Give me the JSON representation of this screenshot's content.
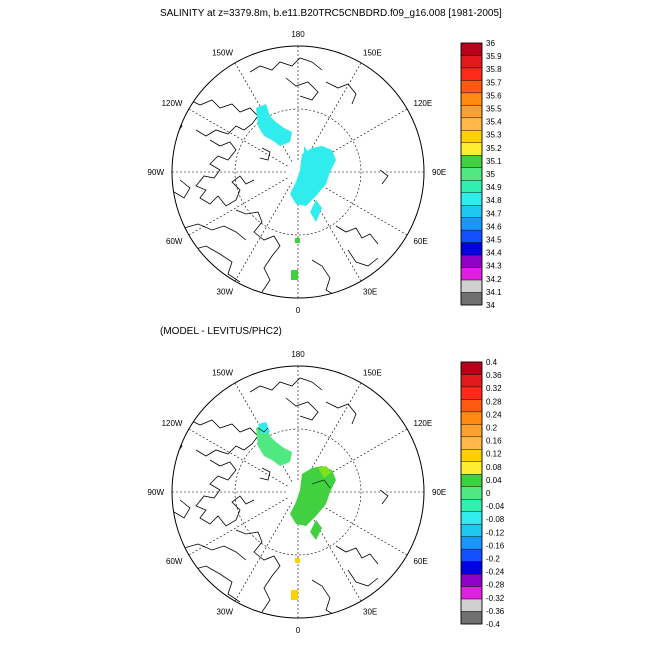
{
  "chart_data": [
    {
      "type": "polar-map",
      "title": "SALINITY at z=3379.8m, b.e11.B20TRC5CNBDRD.f09_g16.008 [1981-2005]",
      "longitude_labels": [
        "180",
        "150E",
        "120E",
        "90E",
        "60E",
        "30E",
        "0",
        "30W",
        "60W",
        "90W",
        "120W",
        "150W"
      ],
      "colorbar_levels": [
        "36",
        "35.9",
        "35.8",
        "35.7",
        "35.6",
        "35.5",
        "35.4",
        "35.3",
        "35.2",
        "35.1",
        "35",
        "34.9",
        "34.8",
        "34.7",
        "34.6",
        "34.5",
        "34.4",
        "34.3",
        "34.2",
        "34.1",
        "34"
      ],
      "colorbar_colors": [
        "#b8001a",
        "#e31a1c",
        "#ff2a1a",
        "#ff5a10",
        "#ff8c10",
        "#ffa030",
        "#ffb848",
        "#ffd000",
        "#ffee30",
        "#40d040",
        "#50e880",
        "#30f0b0",
        "#30ecec",
        "#20c8f0",
        "#1a96ff",
        "#1050ff",
        "#0000e0",
        "#9000c8",
        "#e020e0",
        "#d0d0d0",
        "#707070"
      ]
    },
    {
      "type": "polar-map",
      "title": "(MODEL - LEVITUS/PHC2)",
      "longitude_labels": [
        "180",
        "150E",
        "120E",
        "90E",
        "60E",
        "30E",
        "0",
        "30W",
        "60W",
        "90W",
        "120W",
        "150W"
      ],
      "colorbar_levels": [
        "0.4",
        "0.36",
        "0.32",
        "0.28",
        "0.24",
        "0.2",
        "0.16",
        "0.12",
        "0.08",
        "0.04",
        "0",
        "-0.04",
        "-0.08",
        "-0.12",
        "-0.16",
        "-0.2",
        "-0.24",
        "-0.28",
        "-0.32",
        "-0.36",
        "-0.4"
      ],
      "colorbar_colors": [
        "#b8001a",
        "#e31a1c",
        "#ff2a1a",
        "#ff5a10",
        "#ff8c10",
        "#ffa030",
        "#ffb848",
        "#ffd000",
        "#ffee30",
        "#40d040",
        "#50e880",
        "#30f0b0",
        "#30ecec",
        "#20c8f0",
        "#1a96ff",
        "#1050ff",
        "#0000e0",
        "#9000c8",
        "#e020e0",
        "#d0d0d0",
        "#707070"
      ]
    }
  ]
}
